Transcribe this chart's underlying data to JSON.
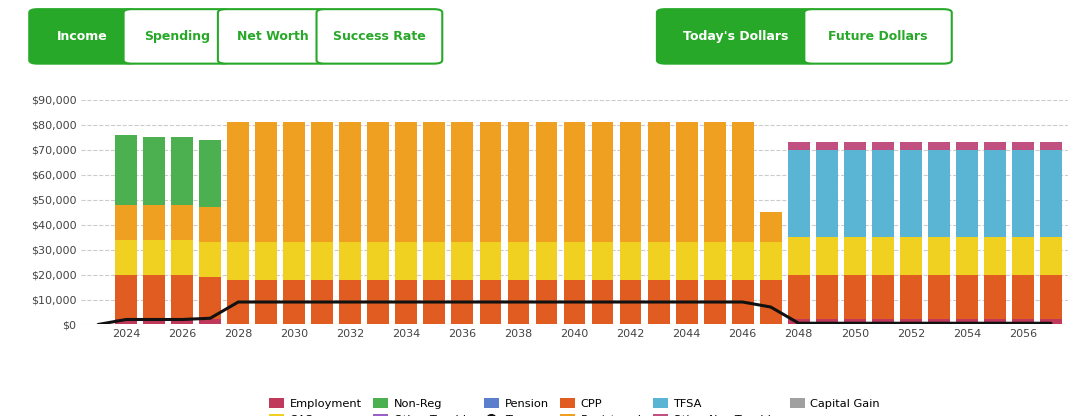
{
  "years": [
    2023,
    2024,
    2025,
    2026,
    2027,
    2028,
    2029,
    2030,
    2031,
    2032,
    2033,
    2034,
    2035,
    2036,
    2037,
    2038,
    2039,
    2040,
    2041,
    2042,
    2043,
    2044,
    2045,
    2046,
    2047,
    2048,
    2049,
    2050,
    2051,
    2052,
    2053,
    2054,
    2055,
    2056,
    2057
  ],
  "employment": [
    0,
    2000,
    2000,
    2000,
    2000,
    0,
    0,
    0,
    0,
    0,
    0,
    0,
    0,
    0,
    0,
    0,
    0,
    0,
    0,
    0,
    0,
    0,
    0,
    0,
    0,
    2000,
    2000,
    2000,
    2000,
    2000,
    2000,
    2000,
    2000,
    2000,
    2000
  ],
  "cpp": [
    0,
    18000,
    18000,
    18000,
    17000,
    18000,
    18000,
    18000,
    18000,
    18000,
    18000,
    18000,
    18000,
    18000,
    18000,
    18000,
    18000,
    18000,
    18000,
    18000,
    18000,
    18000,
    18000,
    18000,
    18000,
    18000,
    18000,
    18000,
    18000,
    18000,
    18000,
    18000,
    18000,
    18000,
    18000
  ],
  "oas": [
    0,
    14000,
    14000,
    14000,
    14000,
    15000,
    15000,
    15000,
    15000,
    15000,
    15000,
    15000,
    15000,
    15000,
    15000,
    15000,
    15000,
    15000,
    15000,
    15000,
    15000,
    15000,
    15000,
    15000,
    15000,
    15000,
    15000,
    15000,
    15000,
    15000,
    15000,
    15000,
    15000,
    15000,
    15000
  ],
  "registered": [
    0,
    14000,
    14000,
    14000,
    14000,
    48000,
    48000,
    48000,
    48000,
    48000,
    48000,
    48000,
    48000,
    48000,
    48000,
    48000,
    48000,
    48000,
    48000,
    48000,
    48000,
    48000,
    48000,
    48000,
    12000,
    0,
    0,
    0,
    0,
    0,
    0,
    0,
    0,
    0,
    0
  ],
  "non_reg": [
    0,
    28000,
    27000,
    27000,
    27000,
    0,
    0,
    0,
    0,
    0,
    0,
    0,
    0,
    0,
    0,
    0,
    0,
    0,
    0,
    0,
    0,
    0,
    0,
    0,
    0,
    0,
    0,
    0,
    0,
    0,
    0,
    0,
    0,
    0,
    0
  ],
  "tfsa": [
    0,
    0,
    0,
    0,
    0,
    0,
    0,
    0,
    0,
    0,
    0,
    0,
    0,
    0,
    0,
    0,
    0,
    0,
    0,
    0,
    0,
    0,
    0,
    0,
    0,
    35000,
    35000,
    35000,
    35000,
    35000,
    35000,
    35000,
    35000,
    35000,
    35000
  ],
  "pension": [
    0,
    0,
    0,
    0,
    0,
    0,
    0,
    0,
    0,
    0,
    0,
    0,
    0,
    0,
    0,
    0,
    0,
    0,
    0,
    0,
    0,
    0,
    0,
    0,
    0,
    0,
    0,
    0,
    0,
    0,
    0,
    0,
    0,
    0,
    0
  ],
  "other_taxable": [
    0,
    0,
    0,
    0,
    0,
    0,
    0,
    0,
    0,
    0,
    0,
    0,
    0,
    0,
    0,
    0,
    0,
    0,
    0,
    0,
    0,
    0,
    0,
    0,
    0,
    0,
    0,
    0,
    0,
    0,
    0,
    0,
    0,
    0,
    0
  ],
  "other_non_taxable": [
    0,
    0,
    0,
    0,
    0,
    0,
    0,
    0,
    0,
    0,
    0,
    0,
    0,
    0,
    0,
    0,
    0,
    0,
    0,
    0,
    0,
    0,
    0,
    0,
    0,
    3000,
    3000,
    3000,
    3000,
    3000,
    3000,
    3000,
    3000,
    3000,
    3000
  ],
  "capital_gain": [
    0,
    0,
    0,
    0,
    0,
    0,
    0,
    0,
    0,
    0,
    0,
    0,
    0,
    0,
    0,
    0,
    0,
    0,
    0,
    0,
    0,
    0,
    0,
    0,
    0,
    0,
    0,
    0,
    0,
    0,
    0,
    0,
    0,
    0,
    0
  ],
  "tax": [
    0,
    2000,
    2000,
    2000,
    2500,
    9000,
    9000,
    9000,
    9000,
    9000,
    9000,
    9000,
    9000,
    9000,
    9000,
    9000,
    9000,
    9000,
    9000,
    9000,
    9000,
    9000,
    9000,
    9000,
    7000,
    500,
    500,
    500,
    500,
    500,
    500,
    500,
    500,
    500,
    500
  ],
  "colors": {
    "employment": "#c0395b",
    "cpp": "#e05c20",
    "oas": "#f0d020",
    "registered": "#f0a020",
    "non_reg": "#4caf50",
    "tfsa": "#5ab4d4",
    "pension": "#5b7fcc",
    "other_taxable": "#9c5fc5",
    "other_non_taxable": "#c05080",
    "capital_gain": "#a0a0a0",
    "tax": "#111111"
  },
  "ylim": [
    0,
    90000
  ],
  "yticks": [
    0,
    10000,
    20000,
    30000,
    40000,
    50000,
    60000,
    70000,
    80000,
    90000
  ],
  "bg_color": "#ffffff",
  "grid_color": "#cccccc"
}
